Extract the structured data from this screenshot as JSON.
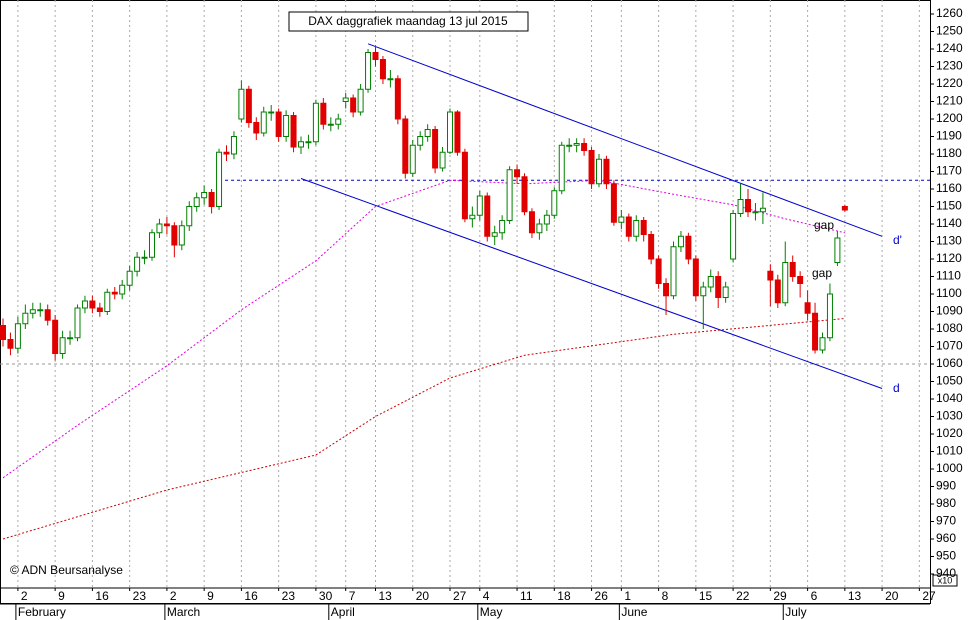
{
  "chart_data": {
    "type": "candlestick",
    "title": "DAX daggrafiek maandag 13 jul 2015",
    "source": "© ADN Beursanalyse",
    "scale_note": "x10",
    "up_color": "#008000",
    "down_color": "#e00000",
    "x": [
      "2015-01-29",
      "2015-01-30",
      "2015-02-02",
      "2015-02-03",
      "2015-02-04",
      "2015-02-05",
      "2015-02-06",
      "2015-02-09",
      "2015-02-10",
      "2015-02-11",
      "2015-02-12",
      "2015-02-13",
      "2015-02-16",
      "2015-02-17",
      "2015-02-18",
      "2015-02-19",
      "2015-02-20",
      "2015-02-23",
      "2015-02-24",
      "2015-02-25",
      "2015-02-26",
      "2015-02-27",
      "2015-03-02",
      "2015-03-03",
      "2015-03-04",
      "2015-03-05",
      "2015-03-06",
      "2015-03-09",
      "2015-03-10",
      "2015-03-11",
      "2015-03-12",
      "2015-03-13",
      "2015-03-16",
      "2015-03-17",
      "2015-03-18",
      "2015-03-19",
      "2015-03-20",
      "2015-03-23",
      "2015-03-24",
      "2015-03-25",
      "2015-03-26",
      "2015-03-27",
      "2015-03-30",
      "2015-03-31",
      "2015-04-01",
      "2015-04-02",
      "2015-04-07",
      "2015-04-08",
      "2015-04-09",
      "2015-04-10",
      "2015-04-13",
      "2015-04-14",
      "2015-04-15",
      "2015-04-16",
      "2015-04-17",
      "2015-04-20",
      "2015-04-21",
      "2015-04-22",
      "2015-04-23",
      "2015-04-24",
      "2015-04-27",
      "2015-04-28",
      "2015-04-29",
      "2015-04-30",
      "2015-05-04",
      "2015-05-05",
      "2015-05-06",
      "2015-05-07",
      "2015-05-08",
      "2015-05-11",
      "2015-05-12",
      "2015-05-13",
      "2015-05-14",
      "2015-05-15",
      "2015-05-18",
      "2015-05-19",
      "2015-05-20",
      "2015-05-21",
      "2015-05-22",
      "2015-05-26",
      "2015-05-27",
      "2015-05-28",
      "2015-05-29",
      "2015-06-01",
      "2015-06-02",
      "2015-06-03",
      "2015-06-04",
      "2015-06-05",
      "2015-06-08",
      "2015-06-09",
      "2015-06-10",
      "2015-06-11",
      "2015-06-12",
      "2015-06-15",
      "2015-06-16",
      "2015-06-17",
      "2015-06-18",
      "2015-06-19",
      "2015-06-22",
      "2015-06-23",
      "2015-06-24",
      "2015-06-25",
      "2015-06-26",
      "2015-06-29",
      "2015-06-30",
      "2015-07-01",
      "2015-07-02",
      "2015-07-03",
      "2015-07-06",
      "2015-07-07",
      "2015-07-08",
      "2015-07-09",
      "2015-07-10",
      "2015-07-13"
    ],
    "open": [
      1082,
      1074,
      1069,
      1083,
      1089,
      1091,
      1091,
      1085,
      1066,
      1075,
      1075,
      1092,
      1096,
      1092,
      1090,
      1101,
      1100,
      1105,
      1113,
      1121,
      1121,
      1135,
      1140,
      1139,
      1128,
      1139,
      1150,
      1155,
      1158,
      1150,
      1181,
      1180,
      1200,
      1217,
      1198,
      1192,
      1204,
      1204,
      1190,
      1202,
      1184,
      1187,
      1187,
      1209,
      1197,
      1197,
      1210,
      1212,
      1204,
      1217,
      1238,
      1234,
      1223,
      1223,
      1200,
      1169,
      1185,
      1190,
      1194,
      1172,
      1181,
      1204,
      1181,
      1143,
      1145,
      1156,
      1133,
      1135,
      1142,
      1171,
      1167,
      1147,
      1135,
      1140,
      1145,
      1159,
      1185,
      1185,
      1186,
      1182,
      1163,
      1177,
      1163,
      1141,
      1144,
      1133,
      1142,
      1134,
      1120,
      1106,
      1099,
      1127,
      1133,
      1120,
      1099,
      1104,
      1110,
      1098,
      1120,
      1146,
      1154,
      1147,
      1147,
      1113,
      1108,
      1095,
      1118,
      1110,
      1095,
      1089,
      1068,
      1075,
      1118,
      1150
    ],
    "high": [
      1086,
      1078,
      1087,
      1094,
      1095,
      1095,
      1094,
      1088,
      1079,
      1079,
      1094,
      1099,
      1099,
      1095,
      1103,
      1104,
      1108,
      1116,
      1124,
      1125,
      1137,
      1143,
      1144,
      1141,
      1142,
      1153,
      1158,
      1162,
      1160,
      1183,
      1185,
      1193,
      1222,
      1219,
      1201,
      1207,
      1208,
      1206,
      1205,
      1204,
      1190,
      1191,
      1211,
      1212,
      1201,
      1203,
      1215,
      1214,
      1220,
      1240,
      1242,
      1236,
      1228,
      1225,
      1202,
      1188,
      1193,
      1197,
      1196,
      1184,
      1206,
      1205,
      1183,
      1150,
      1159,
      1158,
      1139,
      1145,
      1173,
      1174,
      1169,
      1149,
      1143,
      1148,
      1161,
      1187,
      1189,
      1189,
      1189,
      1184,
      1180,
      1179,
      1165,
      1148,
      1146,
      1145,
      1144,
      1136,
      1122,
      1109,
      1130,
      1136,
      1135,
      1122,
      1107,
      1114,
      1113,
      1107,
      1148,
      1163,
      1160,
      1152,
      1158,
      1117,
      1111,
      1130,
      1122,
      1113,
      1102,
      1095,
      1078,
      1106,
      1136,
      1151
    ],
    "low": [
      1070,
      1065,
      1066,
      1080,
      1086,
      1087,
      1082,
      1062,
      1063,
      1071,
      1073,
      1089,
      1089,
      1087,
      1088,
      1097,
      1097,
      1102,
      1110,
      1117,
      1119,
      1132,
      1134,
      1121,
      1125,
      1136,
      1147,
      1151,
      1146,
      1148,
      1176,
      1177,
      1198,
      1195,
      1188,
      1190,
      1199,
      1187,
      1187,
      1181,
      1180,
      1183,
      1185,
      1194,
      1193,
      1194,
      1206,
      1201,
      1202,
      1215,
      1230,
      1220,
      1218,
      1197,
      1166,
      1167,
      1182,
      1187,
      1169,
      1170,
      1180,
      1179,
      1141,
      1138,
      1142,
      1130,
      1128,
      1131,
      1140,
      1163,
      1145,
      1132,
      1131,
      1136,
      1143,
      1157,
      1181,
      1181,
      1179,
      1160,
      1161,
      1160,
      1139,
      1137,
      1130,
      1130,
      1130,
      1117,
      1103,
      1088,
      1097,
      1124,
      1117,
      1096,
      1080,
      1101,
      1092,
      1095,
      1118,
      1144,
      1144,
      1142,
      1140,
      1093,
      1092,
      1093,
      1107,
      1098,
      1085,
      1066,
      1066,
      1073,
      1116,
      1147
    ],
    "close": [
      1074,
      1069,
      1083,
      1089,
      1091,
      1091,
      1085,
      1066,
      1075,
      1075,
      1092,
      1096,
      1092,
      1090,
      1101,
      1100,
      1105,
      1113,
      1121,
      1121,
      1135,
      1140,
      1139,
      1128,
      1139,
      1150,
      1155,
      1158,
      1150,
      1181,
      1180,
      1190,
      1217,
      1198,
      1192,
      1204,
      1204,
      1190,
      1202,
      1184,
      1187,
      1187,
      1209,
      1197,
      1197,
      1200,
      1212,
      1204,
      1217,
      1238,
      1234,
      1223,
      1223,
      1200,
      1169,
      1185,
      1190,
      1194,
      1172,
      1181,
      1204,
      1181,
      1143,
      1145,
      1156,
      1133,
      1135,
      1142,
      1171,
      1167,
      1147,
      1135,
      1140,
      1145,
      1159,
      1185,
      1185,
      1186,
      1182,
      1163,
      1177,
      1163,
      1141,
      1144,
      1133,
      1142,
      1134,
      1120,
      1106,
      1099,
      1127,
      1133,
      1120,
      1099,
      1104,
      1110,
      1098,
      1104,
      1146,
      1154,
      1147,
      1147,
      1149,
      1108,
      1095,
      1118,
      1110,
      1106,
      1089,
      1068,
      1075,
      1100,
      1132,
      1148
    ],
    "moving_averages": [
      {
        "color": "#e000e0",
        "x": [
          "2015-01-29",
          "2015-02-12",
          "2015-03-02",
          "2015-03-16",
          "2015-03-30",
          "2015-04-13",
          "2015-04-27",
          "2015-05-12",
          "2015-05-27",
          "2015-06-10",
          "2015-06-22",
          "2015-07-01",
          "2015-07-13"
        ],
        "values": [
          995,
          1025,
          1059,
          1091,
          1119,
          1150,
          1165,
          1163,
          1165,
          1157,
          1151,
          1143,
          1135
        ]
      },
      {
        "color": "#cc0000",
        "x": [
          "2015-01-29",
          "2015-03-02",
          "2015-03-30",
          "2015-04-13",
          "2015-04-27",
          "2015-05-12",
          "2015-05-27",
          "2015-06-10",
          "2015-07-13"
        ],
        "values": [
          960,
          988,
          1008,
          1030,
          1052,
          1065,
          1071,
          1077,
          1086
        ]
      }
    ],
    "trendlines": [
      {
        "color": "#0000cc",
        "x": [
          "2015-04-10",
          "2015-07-20"
        ],
        "values": [
          1243,
          1133
        ]
      },
      {
        "color": "#0000cc",
        "x": [
          "2015-03-26",
          "2015-07-20"
        ],
        "values": [
          1166,
          1046
        ]
      }
    ],
    "hlines": [
      {
        "value": 1165,
        "from": "2015-03-11",
        "color": "#0000cc"
      },
      {
        "value": 1060,
        "color": "#999999"
      }
    ],
    "annotations": [
      "d'",
      "d",
      "gap",
      "gap"
    ],
    "ylim": [
      932,
      1268
    ],
    "yticks": [
      940,
      950,
      960,
      970,
      980,
      990,
      1000,
      1010,
      1020,
      1030,
      1040,
      1050,
      1060,
      1070,
      1080,
      1090,
      1100,
      1110,
      1120,
      1130,
      1140,
      1150,
      1160,
      1170,
      1180,
      1190,
      1200,
      1210,
      1220,
      1230,
      1240,
      1250,
      1260
    ],
    "xticks": [
      {
        "value": "2015-02-02",
        "label": "2"
      },
      {
        "value": "2015-02-09",
        "label": "9"
      },
      {
        "value": "2015-02-16",
        "label": "16"
      },
      {
        "value": "2015-02-23",
        "label": "23"
      },
      {
        "value": "2015-03-02",
        "label": "2"
      },
      {
        "value": "2015-03-09",
        "label": "9"
      },
      {
        "value": "2015-03-16",
        "label": "16"
      },
      {
        "value": "2015-03-23",
        "label": "23"
      },
      {
        "value": "2015-03-30",
        "label": "30"
      },
      {
        "value": "2015-04-07",
        "label": "7"
      },
      {
        "value": "2015-04-13",
        "label": "13"
      },
      {
        "value": "2015-04-20",
        "label": "20"
      },
      {
        "value": "2015-04-27",
        "label": "27"
      },
      {
        "value": "2015-05-04",
        "label": "4"
      },
      {
        "value": "2015-05-11",
        "label": "11"
      },
      {
        "value": "2015-05-18",
        "label": "18"
      },
      {
        "value": "2015-05-26",
        "label": "26"
      },
      {
        "value": "2015-06-01",
        "label": "1"
      },
      {
        "value": "2015-06-08",
        "label": "8"
      },
      {
        "value": "2015-06-15",
        "label": "15"
      },
      {
        "value": "2015-06-22",
        "label": "22"
      },
      {
        "value": "2015-06-29",
        "label": "29"
      },
      {
        "value": "2015-07-06",
        "label": "6"
      },
      {
        "value": "2015-07-13",
        "label": "13"
      },
      {
        "value": "2015-07-20",
        "label": "20"
      },
      {
        "value": "2015-07-27",
        "label": "27"
      }
    ],
    "month_ticks": [
      {
        "value": "2015-02-02",
        "label": "February"
      },
      {
        "value": "2015-03-02",
        "label": "March"
      },
      {
        "value": "2015-04-01",
        "label": "April"
      },
      {
        "value": "2015-05-04",
        "label": "May"
      },
      {
        "value": "2015-06-01",
        "label": "June"
      },
      {
        "value": "2015-07-01",
        "label": "July"
      }
    ],
    "grid": true
  }
}
